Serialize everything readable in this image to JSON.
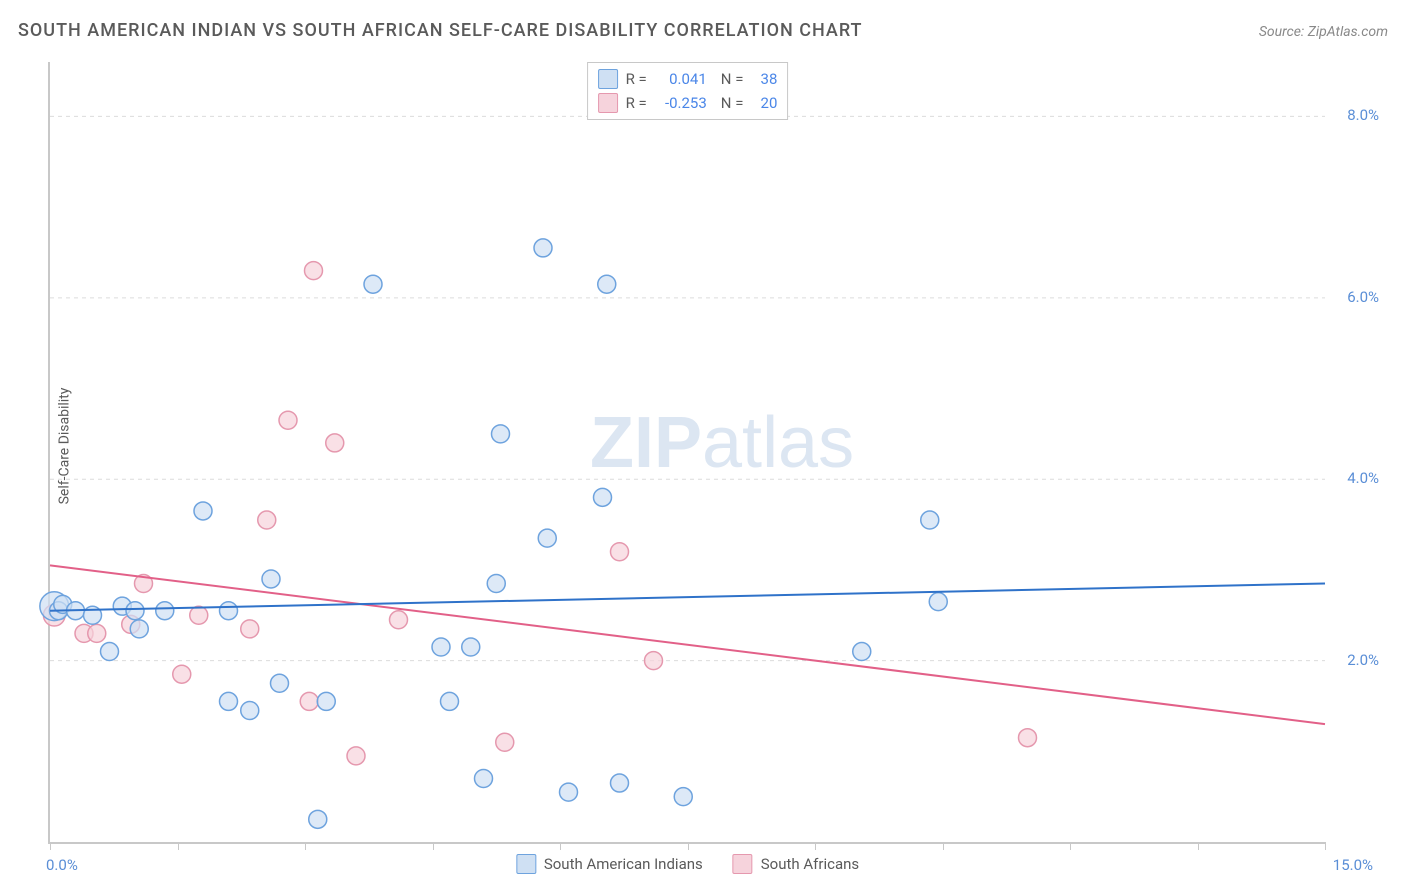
{
  "header": {
    "title": "SOUTH AMERICAN INDIAN VS SOUTH AFRICAN SELF-CARE DISABILITY CORRELATION CHART",
    "source": "Source: ZipAtlas.com"
  },
  "y_axis_label": "Self-Care Disability",
  "watermark": {
    "text1": "ZIP",
    "text2": "atlas",
    "fontsize": 72
  },
  "chart": {
    "type": "scatter",
    "xlim": [
      0.0,
      15.0
    ],
    "ylim": [
      0.0,
      8.6
    ],
    "x_lim_labels": [
      "0.0%",
      "15.0%"
    ],
    "y_ticks": [
      2.0,
      4.0,
      6.0,
      8.0
    ],
    "y_tick_labels": [
      "2.0%",
      "4.0%",
      "6.0%",
      "8.0%"
    ],
    "x_tick_positions": [
      0,
      1.5,
      3.0,
      4.5,
      6.0,
      7.5,
      9.0,
      10.5,
      12.0,
      13.5,
      15.0
    ],
    "background_color": "#ffffff",
    "grid_color": "#dcdcdc",
    "axis_color": "#c8c8c8",
    "tick_label_color": "#5a8ed6"
  },
  "series": {
    "blue": {
      "name": "South American Indians",
      "fill": "#cfe0f3",
      "stroke": "#6ea3de",
      "fill_opacity": 0.7,
      "marker_radius": 9,
      "r_value": "0.041",
      "n_value": "38",
      "trend": {
        "y_at_xmin": 2.55,
        "y_at_xmax": 2.85,
        "color": "#2f72c9",
        "width": 2
      },
      "points": [
        {
          "x": 0.05,
          "y": 2.6,
          "r": 1.6
        },
        {
          "x": 0.1,
          "y": 2.55,
          "r": 1.0
        },
        {
          "x": 0.15,
          "y": 2.62,
          "r": 1.0
        },
        {
          "x": 0.3,
          "y": 2.55,
          "r": 1.0
        },
        {
          "x": 0.5,
          "y": 2.5,
          "r": 1.0
        },
        {
          "x": 0.7,
          "y": 2.1,
          "r": 1.0
        },
        {
          "x": 0.85,
          "y": 2.6,
          "r": 1.0
        },
        {
          "x": 1.0,
          "y": 2.55,
          "r": 1.0
        },
        {
          "x": 1.05,
          "y": 2.35,
          "r": 1.0
        },
        {
          "x": 1.35,
          "y": 2.55,
          "r": 1.0
        },
        {
          "x": 1.8,
          "y": 3.65,
          "r": 1.0
        },
        {
          "x": 2.1,
          "y": 2.55,
          "r": 1.0
        },
        {
          "x": 2.1,
          "y": 1.55,
          "r": 1.0
        },
        {
          "x": 2.35,
          "y": 1.45,
          "r": 1.0
        },
        {
          "x": 2.6,
          "y": 2.9,
          "r": 1.0
        },
        {
          "x": 2.7,
          "y": 1.75,
          "r": 1.0
        },
        {
          "x": 3.15,
          "y": 0.25,
          "r": 1.0
        },
        {
          "x": 3.25,
          "y": 1.55,
          "r": 1.0
        },
        {
          "x": 3.8,
          "y": 6.15,
          "r": 1.0
        },
        {
          "x": 4.6,
          "y": 2.15,
          "r": 1.0
        },
        {
          "x": 4.7,
          "y": 1.55,
          "r": 1.0
        },
        {
          "x": 4.95,
          "y": 2.15,
          "r": 1.0
        },
        {
          "x": 5.1,
          "y": 0.7,
          "r": 1.0
        },
        {
          "x": 5.25,
          "y": 2.85,
          "r": 1.0
        },
        {
          "x": 5.3,
          "y": 4.5,
          "r": 1.0
        },
        {
          "x": 5.8,
          "y": 6.55,
          "r": 1.0
        },
        {
          "x": 5.85,
          "y": 3.35,
          "r": 1.0
        },
        {
          "x": 6.1,
          "y": 0.55,
          "r": 1.0
        },
        {
          "x": 6.5,
          "y": 3.8,
          "r": 1.0
        },
        {
          "x": 6.55,
          "y": 6.15,
          "r": 1.0
        },
        {
          "x": 6.7,
          "y": 0.65,
          "r": 1.0
        },
        {
          "x": 7.45,
          "y": 0.5,
          "r": 1.0
        },
        {
          "x": 9.55,
          "y": 2.1,
          "r": 1.0
        },
        {
          "x": 10.35,
          "y": 3.55,
          "r": 1.0
        },
        {
          "x": 10.45,
          "y": 2.65,
          "r": 1.0
        }
      ]
    },
    "pink": {
      "name": "South Africans",
      "fill": "#f6d3dc",
      "stroke": "#e598ae",
      "fill_opacity": 0.7,
      "marker_radius": 9,
      "r_value": "-0.253",
      "n_value": "20",
      "trend": {
        "y_at_xmin": 3.05,
        "y_at_xmax": 1.3,
        "color": "#e26088",
        "width": 2
      },
      "points": [
        {
          "x": 0.05,
          "y": 2.5,
          "r": 1.2
        },
        {
          "x": 0.4,
          "y": 2.3,
          "r": 1.0
        },
        {
          "x": 0.55,
          "y": 2.3,
          "r": 1.0
        },
        {
          "x": 0.95,
          "y": 2.4,
          "r": 1.0
        },
        {
          "x": 1.1,
          "y": 2.85,
          "r": 1.0
        },
        {
          "x": 1.55,
          "y": 1.85,
          "r": 1.0
        },
        {
          "x": 1.75,
          "y": 2.5,
          "r": 1.0
        },
        {
          "x": 2.35,
          "y": 2.35,
          "r": 1.0
        },
        {
          "x": 2.55,
          "y": 3.55,
          "r": 1.0
        },
        {
          "x": 2.8,
          "y": 4.65,
          "r": 1.0
        },
        {
          "x": 3.05,
          "y": 1.55,
          "r": 1.0
        },
        {
          "x": 3.1,
          "y": 6.3,
          "r": 1.0
        },
        {
          "x": 3.35,
          "y": 4.4,
          "r": 1.0
        },
        {
          "x": 3.6,
          "y": 0.95,
          "r": 1.0
        },
        {
          "x": 4.1,
          "y": 2.45,
          "r": 1.0
        },
        {
          "x": 5.35,
          "y": 1.1,
          "r": 1.0
        },
        {
          "x": 6.7,
          "y": 3.2,
          "r": 1.0
        },
        {
          "x": 7.1,
          "y": 2.0,
          "r": 1.0
        },
        {
          "x": 11.5,
          "y": 1.15,
          "r": 1.0
        }
      ]
    }
  },
  "stats_labels": {
    "r": "R =",
    "n": "N ="
  },
  "legend": {
    "series_labels": [
      "South American Indians",
      "South Africans"
    ]
  }
}
